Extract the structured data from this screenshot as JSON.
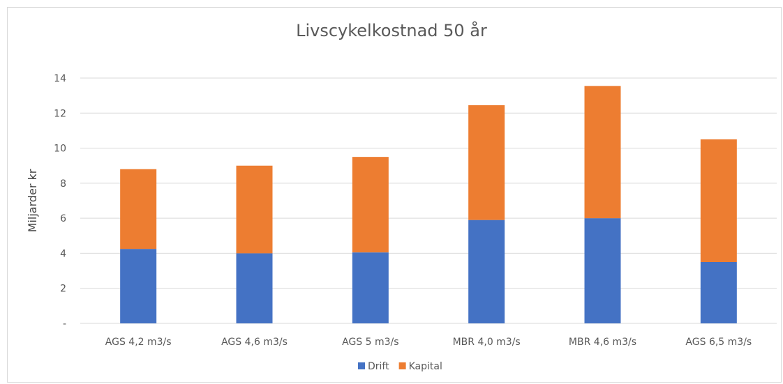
{
  "chart_data": {
    "type": "bar",
    "stacked": true,
    "title": "Livscykelkostnad 50 år",
    "ylabel": "Miljarder kr",
    "xlabel": "",
    "ylim": [
      0,
      14
    ],
    "yticks": [
      0,
      2,
      4,
      6,
      8,
      10,
      12,
      14
    ],
    "ytick_labels": [
      "-",
      "2",
      "4",
      "6",
      "8",
      "10",
      "12",
      "14"
    ],
    "grid": true,
    "legend_position": "bottom",
    "categories": [
      "AGS 4,2 m3/s",
      "AGS 4,6 m3/s",
      "AGS 5 m3/s",
      "MBR 4,0 m3/s",
      "MBR 4,6 m3/s",
      "AGS 6,5 m3/s"
    ],
    "series": [
      {
        "name": "Drift",
        "color": "#4472c4",
        "values": [
          4.25,
          4.0,
          4.05,
          5.9,
          6.0,
          3.5
        ]
      },
      {
        "name": "Kapital",
        "color": "#ed7d31",
        "values": [
          4.55,
          5.0,
          5.45,
          6.55,
          7.55,
          7.0
        ]
      }
    ]
  }
}
